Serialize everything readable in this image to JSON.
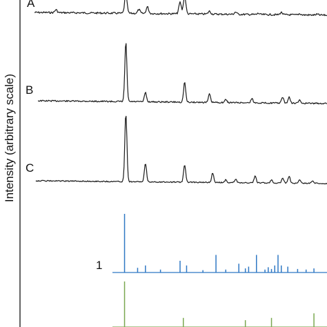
{
  "chart_data": {
    "type": "line",
    "ylabel": "Intensity (arbitrary scale)",
    "xlabel": "",
    "title": "",
    "grid": false,
    "legend": "none",
    "xlim": [
      5,
      50
    ],
    "series": [
      {
        "name": "A",
        "color": "#1a1a1a",
        "peaks": [
          [
            8.5,
            0.15
          ],
          [
            19.2,
            1.0
          ],
          [
            21.2,
            0.2
          ],
          [
            22.5,
            0.35
          ],
          [
            27.5,
            0.6
          ],
          [
            28.2,
            0.95
          ],
          [
            32.0,
            0.15
          ],
          [
            36.0,
            0.12
          ],
          [
            39.5,
            0.06
          ],
          [
            43.0,
            0.12
          ],
          [
            45.8,
            0.06
          ],
          [
            48.5,
            0.04
          ]
        ]
      },
      {
        "name": "B",
        "color": "#1a1a1a",
        "peaks": [
          [
            19.2,
            1.0
          ],
          [
            22.2,
            0.16
          ],
          [
            28.2,
            0.34
          ],
          [
            32.0,
            0.14
          ],
          [
            34.5,
            0.05
          ],
          [
            38.5,
            0.07
          ],
          [
            43.2,
            0.1
          ],
          [
            44.2,
            0.1
          ],
          [
            45.8,
            0.05
          ]
        ]
      },
      {
        "name": "C",
        "color": "#1a1a1a",
        "peaks": [
          [
            19.2,
            1.0
          ],
          [
            22.2,
            0.27
          ],
          [
            28.2,
            0.25
          ],
          [
            32.5,
            0.14
          ],
          [
            34.5,
            0.04
          ],
          [
            36.0,
            0.05
          ],
          [
            39.0,
            0.1
          ],
          [
            41.5,
            0.05
          ],
          [
            43.2,
            0.08
          ],
          [
            44.2,
            0.1
          ],
          [
            45.8,
            0.05
          ],
          [
            47.8,
            0.04
          ]
        ]
      },
      {
        "name": "1",
        "type": "stick",
        "color": "#2f78c4",
        "sticks": [
          [
            19.0,
            1.0
          ],
          [
            21.0,
            0.08
          ],
          [
            22.2,
            0.12
          ],
          [
            24.5,
            0.05
          ],
          [
            27.5,
            0.2
          ],
          [
            28.5,
            0.12
          ],
          [
            31.0,
            0.04
          ],
          [
            33.0,
            0.3
          ],
          [
            34.5,
            0.05
          ],
          [
            36.5,
            0.15
          ],
          [
            37.5,
            0.07
          ],
          [
            38.0,
            0.1
          ],
          [
            39.2,
            0.3
          ],
          [
            40.5,
            0.05
          ],
          [
            41.0,
            0.09
          ],
          [
            41.5,
            0.06
          ],
          [
            42.0,
            0.12
          ],
          [
            42.5,
            0.3
          ],
          [
            43.0,
            0.12
          ],
          [
            44.0,
            0.1
          ],
          [
            45.5,
            0.06
          ],
          [
            46.8,
            0.05
          ],
          [
            48.0,
            0.07
          ]
        ]
      },
      {
        "name": "",
        "type": "stick",
        "color": "#7aa850",
        "sticks": [
          [
            19.0,
            1.0
          ],
          [
            28.0,
            0.2
          ],
          [
            37.5,
            0.15
          ],
          [
            41.5,
            0.2
          ],
          [
            48.0,
            0.3
          ]
        ]
      }
    ]
  },
  "labels": {
    "ylabel": "Intensity (arbitrary scale)",
    "trace_a": "A",
    "trace_b": "B",
    "trace_c": "C",
    "ref_1": "1"
  }
}
